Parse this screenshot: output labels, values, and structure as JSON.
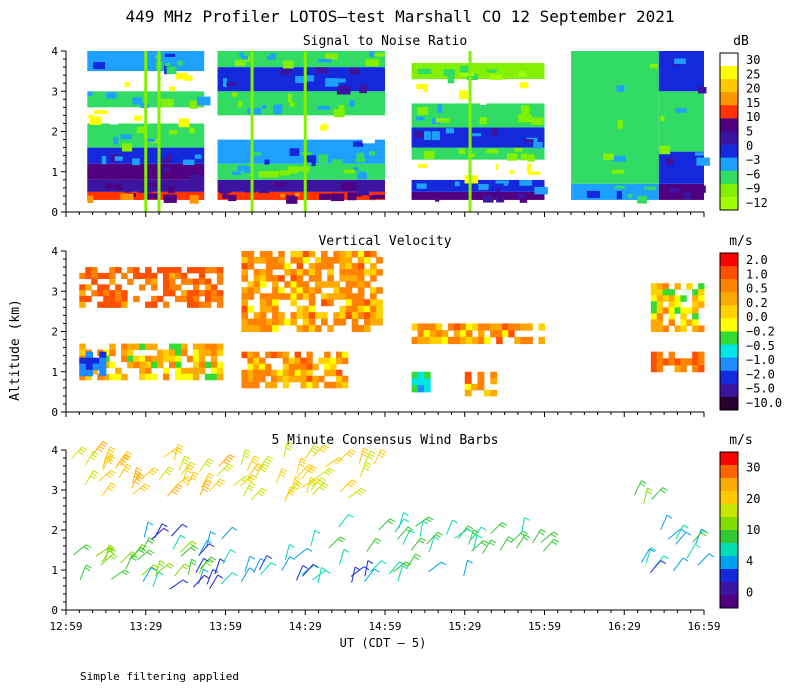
{
  "title": "449 MHz Profiler LOTOS—test Marshall CO 12 September 2021",
  "ylabel": "Altitude (km)",
  "xlabel": "UT  (CDT – 5)",
  "footer": "Simple filtering applied",
  "colors": {
    "axis": "#000000",
    "background": "#ffffff"
  },
  "chart_data": [
    {
      "type": "heatmap",
      "title": "Signal to Noise Ratio",
      "unit": "dB",
      "xlim": [
        "12:59",
        "16:59"
      ],
      "ylim": [
        0,
        4
      ],
      "x_ticks": [
        "12:59",
        "13:29",
        "13:59",
        "14:29",
        "14:59",
        "15:29",
        "15:59",
        "16:29",
        "16:59"
      ],
      "y_ticks": [
        "0",
        "1",
        "2",
        "3",
        "4"
      ],
      "colorbar": {
        "labels": [
          "30",
          "25",
          "20",
          "15",
          "10",
          "5",
          "0",
          "−3",
          "−6",
          "−9",
          "−12"
        ],
        "colors": [
          "#ffffff",
          "#ffff00",
          "#ffc800",
          "#ff9600",
          "#ff3200",
          "#500080",
          "#3c14a0",
          "#1428dc",
          "#1ea0ff",
          "#32dc64",
          "#82f000",
          "#a0ff00"
        ]
      },
      "segments": [
        {
          "x_start": "13:07",
          "x_end": "13:51",
          "bands": [
            {
              "y": [
                0.3,
                0.5
              ],
              "snr": 12
            },
            {
              "y": [
                0.5,
                0.8
              ],
              "snr": 3
            },
            {
              "y": [
                0.8,
                1.2
              ],
              "snr": 6
            },
            {
              "y": [
                1.2,
                1.6
              ],
              "snr": -3
            },
            {
              "y": [
                1.6,
                2.2
              ],
              "snr": -9
            },
            {
              "y": [
                2.2,
                2.6
              ],
              "snr": 30
            },
            {
              "y": [
                2.6,
                3.0
              ],
              "snr": -9
            },
            {
              "y": [
                3.0,
                3.5
              ],
              "snr": 30
            },
            {
              "y": [
                3.5,
                4.0
              ],
              "snr": -6
            }
          ]
        },
        {
          "x_start": "13:56",
          "x_end": "14:59",
          "bands": [
            {
              "y": [
                0.3,
                0.5
              ],
              "snr": 12
            },
            {
              "y": [
                0.5,
                0.8
              ],
              "snr": 3
            },
            {
              "y": [
                0.8,
                1.2
              ],
              "snr": -9
            },
            {
              "y": [
                1.2,
                1.8
              ],
              "snr": -6
            },
            {
              "y": [
                1.8,
                2.4
              ],
              "snr": 30
            },
            {
              "y": [
                2.4,
                3.0
              ],
              "snr": -9
            },
            {
              "y": [
                3.0,
                3.6
              ],
              "snr": -3
            },
            {
              "y": [
                3.6,
                4.0
              ],
              "snr": -9
            }
          ]
        },
        {
          "x_start": "15:09",
          "x_end": "15:59",
          "bands": [
            {
              "y": [
                0.3,
                0.5
              ],
              "snr": 6
            },
            {
              "y": [
                0.5,
                0.8
              ],
              "snr": -3
            },
            {
              "y": [
                0.8,
                1.3
              ],
              "snr": 30
            },
            {
              "y": [
                1.3,
                1.6
              ],
              "snr": -9
            },
            {
              "y": [
                1.6,
                2.1
              ],
              "snr": -3
            },
            {
              "y": [
                2.1,
                2.7
              ],
              "snr": -9
            },
            {
              "y": [
                2.7,
                3.3
              ],
              "snr": 30
            },
            {
              "y": [
                3.3,
                3.7
              ],
              "snr": -12
            }
          ]
        },
        {
          "x_start": "16:09",
          "x_end": "16:42",
          "bands": [
            {
              "y": [
                0.3,
                0.7
              ],
              "snr": -6
            },
            {
              "y": [
                0.7,
                4.0
              ],
              "snr": -9
            }
          ]
        },
        {
          "x_start": "16:42",
          "x_end": "16:59",
          "bands": [
            {
              "y": [
                0.3,
                0.7
              ],
              "snr": 6
            },
            {
              "y": [
                0.7,
                1.5
              ],
              "snr": -3
            },
            {
              "y": [
                1.5,
                3.0
              ],
              "snr": -9
            },
            {
              "y": [
                3.0,
                4.0
              ],
              "snr": -3
            }
          ]
        }
      ]
    },
    {
      "type": "heatmap",
      "title": "Vertical Velocity",
      "unit": "m/s",
      "xlim": [
        "12:59",
        "16:59"
      ],
      "ylim": [
        0,
        4
      ],
      "x_ticks": [
        "12:59",
        "13:29",
        "13:59",
        "14:29",
        "14:59",
        "15:29",
        "15:59",
        "16:29",
        "16:59"
      ],
      "y_ticks": [
        "0",
        "1",
        "2",
        "3",
        "4"
      ],
      "colorbar": {
        "labels": [
          "2.0",
          "1.0",
          "0.5",
          "0.2",
          "0.0",
          "−0.2",
          "−0.5",
          "−1.0",
          "−2.0",
          "−5.0",
          "−10.0"
        ],
        "colors": [
          "#ff0000",
          "#ff5000",
          "#ff8200",
          "#ffaa00",
          "#ffd200",
          "#ffff00",
          "#32dc32",
          "#00e6e6",
          "#1e8cff",
          "#1428dc",
          "#3c14a0",
          "#280032"
        ]
      },
      "regions": [
        {
          "x": [
            "13:04",
            "13:58"
          ],
          "y": [
            2.6,
            3.6
          ],
          "w": 1.0
        },
        {
          "x": [
            "14:05",
            "14:58"
          ],
          "y": [
            2.8,
            4.0
          ],
          "w": 0.5
        },
        {
          "x": [
            "14:05",
            "14:58"
          ],
          "y": [
            2.0,
            2.8
          ],
          "w": 0.5
        },
        {
          "x": [
            "13:04",
            "13:58"
          ],
          "y": [
            0.8,
            1.7
          ],
          "w": 0.2
        },
        {
          "x": [
            "13:04",
            "13:14"
          ],
          "y": [
            0.9,
            1.5
          ],
          "w": -2.0
        },
        {
          "x": [
            "14:05",
            "14:45"
          ],
          "y": [
            0.6,
            1.5
          ],
          "w": 0.5
        },
        {
          "x": [
            "15:09",
            "15:59"
          ],
          "y": [
            1.7,
            2.2
          ],
          "w": 0.5
        },
        {
          "x": [
            "15:09",
            "15:16"
          ],
          "y": [
            0.5,
            1.0
          ],
          "w": -0.5
        },
        {
          "x": [
            "15:29",
            "15:41"
          ],
          "y": [
            0.4,
            1.0
          ],
          "w": 0.5
        },
        {
          "x": [
            "16:39",
            "16:59"
          ],
          "y": [
            2.0,
            3.2
          ],
          "w": 0.2
        },
        {
          "x": [
            "16:39",
            "16:59"
          ],
          "y": [
            1.0,
            1.5
          ],
          "w": 1.0
        }
      ]
    },
    {
      "type": "scatter",
      "title": "5 Minute Consensus Wind Barbs",
      "unit": "m/s",
      "xlim": [
        "12:59",
        "16:59"
      ],
      "ylim": [
        0,
        4
      ],
      "x_ticks": [
        "12:59",
        "13:29",
        "13:59",
        "14:29",
        "14:59",
        "15:29",
        "15:59",
        "16:29",
        "16:59"
      ],
      "y_ticks": [
        "0",
        "1",
        "2",
        "3",
        "4"
      ],
      "colorbar": {
        "labels": [
          "30",
          "20",
          "10",
          "4",
          "0"
        ],
        "colors": [
          "#ff0000",
          "#ff6400",
          "#ffaa00",
          "#ffc800",
          "#c8e600",
          "#82dc00",
          "#32c832",
          "#00dcb4",
          "#00a0f0",
          "#1428dc",
          "#3c14a0",
          "#500080"
        ]
      },
      "barb_groups": [
        {
          "x": [
            "13:00",
            "13:58"
          ],
          "y": [
            2.8,
            3.9
          ],
          "speed": 20
        },
        {
          "x": [
            "14:02",
            "14:58"
          ],
          "y": [
            2.7,
            3.9
          ],
          "speed": 18
        },
        {
          "x": [
            "13:00",
            "13:58"
          ],
          "y": [
            0.7,
            1.5
          ],
          "speed": 12
        },
        {
          "x": [
            "13:28",
            "13:58"
          ],
          "y": [
            0.5,
            1.9
          ],
          "speed": 4
        },
        {
          "x": [
            "14:02",
            "14:58"
          ],
          "y": [
            0.6,
            1.3
          ],
          "speed": 5
        },
        {
          "x": [
            "14:29",
            "15:59"
          ],
          "y": [
            1.4,
            2.1
          ],
          "speed": 9
        },
        {
          "x": [
            "15:00",
            "15:29"
          ],
          "y": [
            0.7,
            1.1
          ],
          "speed": 8
        },
        {
          "x": [
            "16:29",
            "16:40"
          ],
          "y": [
            2.6,
            2.9
          ],
          "speed": 12
        },
        {
          "x": [
            "16:34",
            "16:59"
          ],
          "y": [
            1.6,
            2.1
          ],
          "speed": 8
        },
        {
          "x": [
            "16:34",
            "16:59"
          ],
          "y": [
            0.8,
            1.4
          ],
          "speed": 5
        }
      ]
    }
  ]
}
